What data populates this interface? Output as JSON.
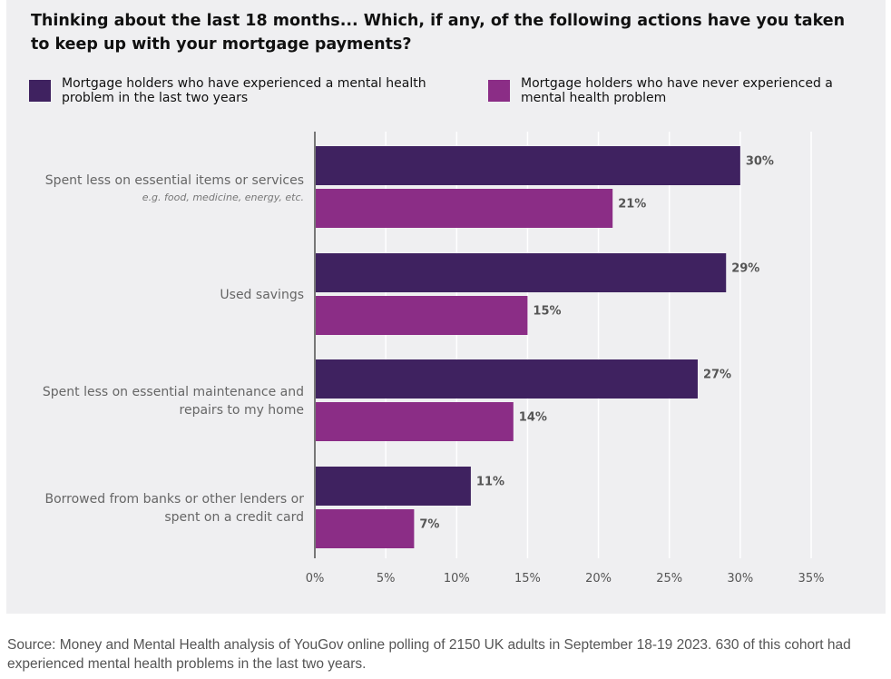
{
  "chart_data": {
    "type": "bar",
    "orientation": "horizontal",
    "title": "Thinking about the last 18 months... Which, if any, of the following actions have you taken to keep up with your mortgage payments?",
    "categories": [
      {
        "label": [
          "Spent less on essential items or services"
        ],
        "sublabel": "e.g. food, medicine, energy, etc."
      },
      {
        "label": [
          "Used savings"
        ],
        "sublabel": ""
      },
      {
        "label": [
          "Spent less on essential maintenance and",
          "repairs to my home"
        ],
        "sublabel": ""
      },
      {
        "label": [
          "Borrowed from banks or other lenders or",
          "spent on a credit card"
        ],
        "sublabel": ""
      }
    ],
    "series": [
      {
        "name": "Mortgage holders who have experienced a mental health problem in the last two years",
        "color": "#3f2260",
        "values": [
          30,
          29,
          27,
          11
        ]
      },
      {
        "name": "Mortgage holders who have never experienced a mental health problem",
        "color": "#8b2d86",
        "values": [
          21,
          15,
          14,
          7
        ]
      }
    ],
    "xlim": [
      0,
      35
    ],
    "xticks": [
      0,
      5,
      10,
      15,
      20,
      25,
      30,
      35
    ],
    "tick_suffix": "%",
    "grid": true,
    "legend_position": "top"
  },
  "source": "Source: Money and Mental Health analysis of YouGov online polling of 2150 UK adults in September 18-19 2023. 630 of this cohort had experienced mental health problems in the last two years."
}
